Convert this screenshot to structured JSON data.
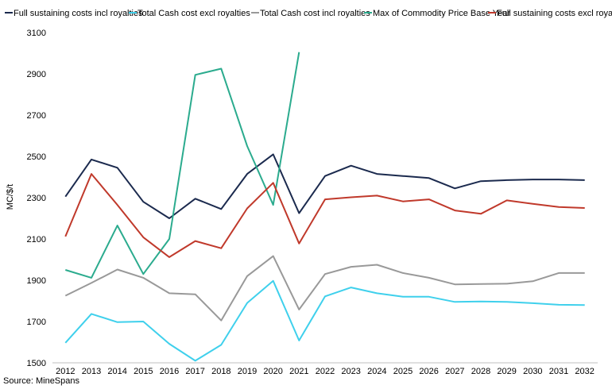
{
  "chart_data": {
    "type": "line",
    "ylabel": "MC/$/t",
    "xlabel": "",
    "title": "",
    "ylim": [
      1500,
      3100
    ],
    "yticks": [
      1500,
      1700,
      1900,
      2100,
      2300,
      2500,
      2700,
      2900,
      3100
    ],
    "gridlines": false,
    "legend_position": "top",
    "categories": [
      "2012",
      "2013",
      "2014",
      "2015",
      "2016",
      "2017",
      "2018",
      "2019",
      "2020",
      "2021",
      "2022",
      "2023",
      "2024",
      "2025",
      "2026",
      "2027",
      "2028",
      "2029",
      "2030",
      "2031",
      "2032"
    ],
    "series": [
      {
        "name": "Full sustaining costs incl royalties",
        "color": "#1b2a4e",
        "values": [
          2305,
          2485,
          2445,
          2280,
          2200,
          2295,
          2245,
          2415,
          2510,
          2225,
          2405,
          2455,
          2415,
          2405,
          2395,
          2345,
          2380,
          2385,
          2388,
          2388,
          2385
        ]
      },
      {
        "name": "Total Cash cost excl royalties",
        "color": "#3fd0ec",
        "values": [
          1597,
          1737,
          1697,
          1700,
          1592,
          1510,
          1587,
          1790,
          1897,
          1608,
          1822,
          1865,
          1837,
          1820,
          1820,
          1795,
          1797,
          1795,
          1789,
          1781,
          1780
        ]
      },
      {
        "name": "Total Cash cost incl royalties",
        "color": "#999999",
        "values": [
          1825,
          1887,
          1952,
          1912,
          1837,
          1832,
          1705,
          1920,
          2017,
          1758,
          1930,
          1965,
          1975,
          1935,
          1912,
          1880,
          1882,
          1883,
          1895,
          1935,
          1935
        ]
      },
      {
        "name": "Max of Commodity Price Base Year",
        "color": "#2bab8e",
        "values": [
          1950,
          1912,
          2165,
          1930,
          2100,
          2895,
          2925,
          2550,
          2265,
          3005,
          null,
          null,
          null,
          null,
          null,
          null,
          null,
          null,
          null,
          null,
          null
        ]
      },
      {
        "name": "Full sustaining costs excl royalties",
        "color": "#c0392b",
        "values": [
          2112,
          2415,
          2265,
          2108,
          2012,
          2090,
          2055,
          2248,
          2372,
          2078,
          2292,
          2302,
          2310,
          2282,
          2292,
          2238,
          2222,
          2287,
          2270,
          2255,
          2250
        ]
      }
    ]
  },
  "source": "Source: MineSpans"
}
